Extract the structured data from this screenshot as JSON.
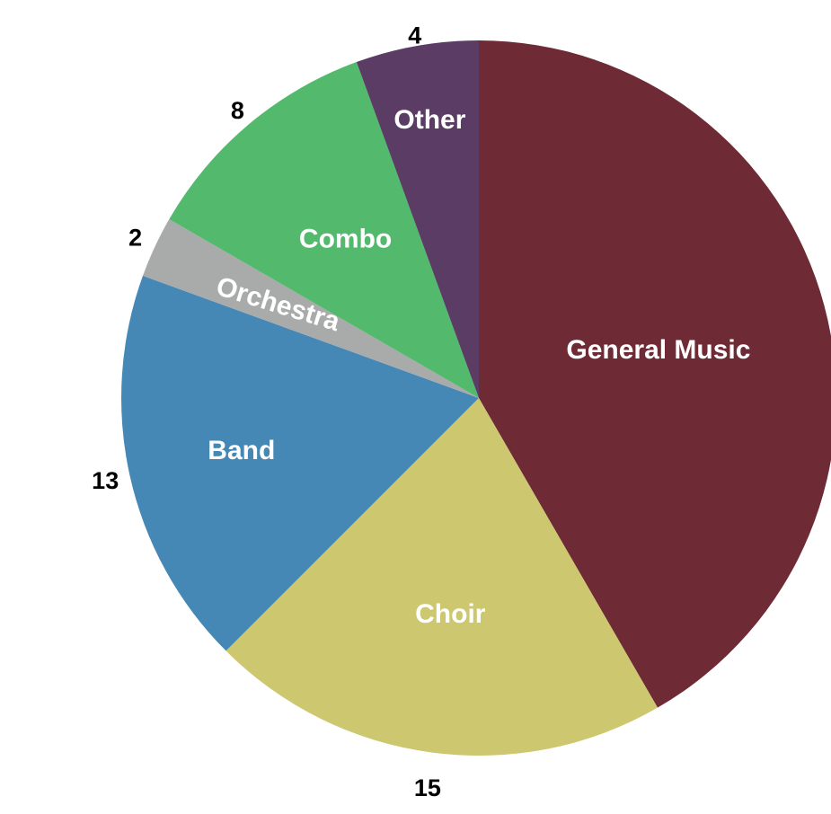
{
  "chart_data": {
    "type": "pie",
    "start_angle_deg": 0,
    "direction": "clockwise",
    "slices": [
      {
        "label": "General Music",
        "value": 30,
        "value_label": "",
        "color": "#6E2A35",
        "label_color": "#FFFFFF"
      },
      {
        "label": "Choir",
        "value": 15,
        "value_label": "15",
        "color": "#CDC86F",
        "label_color": "#FFFFFF"
      },
      {
        "label": "Band",
        "value": 13,
        "value_label": "13",
        "color": "#4588B6",
        "label_color": "#FFFFFF"
      },
      {
        "label": "Orchestra",
        "value": 2,
        "value_label": "2",
        "color": "#A8ABAA",
        "label_color": "#FFFFFF"
      },
      {
        "label": "Combo",
        "value": 8,
        "value_label": "8",
        "color": "#53BA6D",
        "label_color": "#FFFFFF"
      },
      {
        "label": "Other",
        "value": 4,
        "value_label": "4",
        "color": "#5A3C64",
        "label_color": "#FFFFFF"
      }
    ]
  }
}
